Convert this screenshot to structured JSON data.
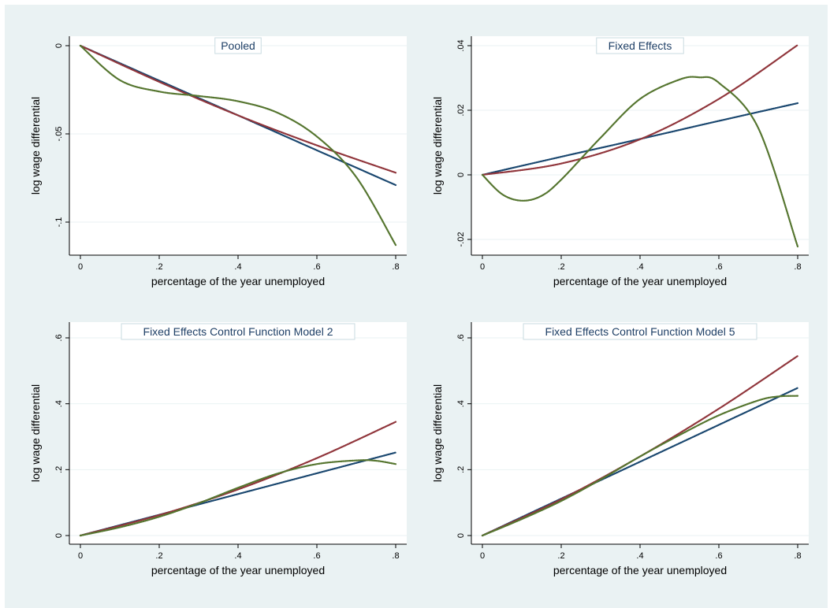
{
  "chart_data": [
    {
      "type": "line",
      "title": "Pooled",
      "xlabel": "percentage of the year unemployed",
      "ylabel": "log wage differential",
      "xlim": [
        0,
        0.8
      ],
      "ylim": [
        -0.12,
        0.0
      ],
      "xticks": [
        0,
        0.2,
        0.4,
        0.6,
        0.8
      ],
      "xtick_labels": [
        "0",
        ".2",
        ".4",
        ".6",
        ".8"
      ],
      "yticks": [
        0,
        -0.05,
        -0.1
      ],
      "ytick_labels": [
        "0",
        "-.05",
        "-.1"
      ],
      "series": [
        {
          "color": "#1a476f",
          "x": [
            0,
            0.2,
            0.4,
            0.6,
            0.8
          ],
          "y": [
            0,
            -0.0198,
            -0.0395,
            -0.0593,
            -0.079
          ]
        },
        {
          "color": "#90353b",
          "x": [
            0,
            0.2,
            0.4,
            0.6,
            0.8
          ],
          "y": [
            0,
            -0.0205,
            -0.0395,
            -0.0565,
            -0.072
          ]
        },
        {
          "color": "#55752f",
          "x": [
            0,
            0.1,
            0.2,
            0.3,
            0.4,
            0.5,
            0.6,
            0.7,
            0.8
          ],
          "y": [
            0,
            -0.0195,
            -0.026,
            -0.0285,
            -0.0315,
            -0.038,
            -0.0515,
            -0.0745,
            -0.113
          ]
        }
      ],
      "grid": true,
      "legend": "none"
    },
    {
      "type": "line",
      "title": "Fixed Effects",
      "xlabel": "percentage of the year unemployed",
      "ylabel": "log wage differential",
      "xlim": [
        0,
        0.8
      ],
      "ylim": [
        -0.022,
        0.04
      ],
      "xticks": [
        0,
        0.2,
        0.4,
        0.6,
        0.8
      ],
      "xtick_labels": [
        "0",
        ".2",
        ".4",
        ".6",
        ".8"
      ],
      "yticks": [
        0.04,
        0.02,
        0,
        -0.02
      ],
      "ytick_labels": [
        ".04",
        ".02",
        "0",
        "-.02"
      ],
      "series": [
        {
          "color": "#1a476f",
          "x": [
            0,
            0.2,
            0.4,
            0.6,
            0.8
          ],
          "y": [
            0,
            0.0056,
            0.0111,
            0.0167,
            0.0222
          ]
        },
        {
          "color": "#90353b",
          "x": [
            0,
            0.2,
            0.4,
            0.6,
            0.8
          ],
          "y": [
            0,
            0.0035,
            0.011,
            0.0235,
            0.0402
          ]
        },
        {
          "color": "#55752f",
          "x": [
            0,
            0.05,
            0.1,
            0.15,
            0.2,
            0.3,
            0.4,
            0.5,
            0.55,
            0.6,
            0.7,
            0.8
          ],
          "y": [
            0,
            -0.006,
            -0.008,
            -0.0065,
            -0.0015,
            0.0115,
            0.0235,
            0.0295,
            0.0302,
            0.0285,
            0.0145,
            -0.0222
          ]
        }
      ],
      "grid": true,
      "legend": "none"
    },
    {
      "type": "line",
      "title": "Fixed Effects Control Function Model 2",
      "xlabel": "percentage of the year unemployed",
      "ylabel": "log wage differential",
      "xlim": [
        0,
        0.8
      ],
      "ylim": [
        -0.005,
        0.6
      ],
      "xticks": [
        0,
        0.2,
        0.4,
        0.6,
        0.8
      ],
      "xtick_labels": [
        "0",
        ".2",
        ".4",
        ".6",
        ".8"
      ],
      "yticks": [
        0,
        0.2,
        0.4,
        0.6
      ],
      "ytick_labels": [
        "0",
        ".2",
        ".4",
        ".6"
      ],
      "series": [
        {
          "color": "#1a476f",
          "x": [
            0,
            0.2,
            0.4,
            0.6,
            0.8
          ],
          "y": [
            0,
            0.063,
            0.126,
            0.189,
            0.252
          ]
        },
        {
          "color": "#90353b",
          "x": [
            0,
            0.2,
            0.4,
            0.6,
            0.8
          ],
          "y": [
            0,
            0.062,
            0.14,
            0.235,
            0.345
          ]
        },
        {
          "color": "#55752f",
          "x": [
            0,
            0.1,
            0.2,
            0.3,
            0.4,
            0.5,
            0.6,
            0.7,
            0.75,
            0.8
          ],
          "y": [
            0,
            0.025,
            0.057,
            0.098,
            0.145,
            0.188,
            0.217,
            0.228,
            0.227,
            0.217
          ]
        }
      ],
      "grid": true,
      "legend": "none"
    },
    {
      "type": "line",
      "title": "Fixed Effects Control Function Model 5",
      "xlabel": "percentage of the year unemployed",
      "ylabel": "log wage differential",
      "xlim": [
        0,
        0.8
      ],
      "ylim": [
        -0.005,
        0.6
      ],
      "xticks": [
        0,
        0.2,
        0.4,
        0.6,
        0.8
      ],
      "xtick_labels": [
        "0",
        ".2",
        ".4",
        ".6",
        ".8"
      ],
      "yticks": [
        0,
        0.2,
        0.4,
        0.6
      ],
      "ytick_labels": [
        "0",
        ".2",
        ".4",
        ".6"
      ],
      "series": [
        {
          "color": "#1a476f",
          "x": [
            0,
            0.2,
            0.4,
            0.6,
            0.8
          ],
          "y": [
            0,
            0.112,
            0.224,
            0.336,
            0.448
          ]
        },
        {
          "color": "#90353b",
          "x": [
            0,
            0.2,
            0.4,
            0.6,
            0.8
          ],
          "y": [
            0,
            0.11,
            0.24,
            0.385,
            0.545
          ]
        },
        {
          "color": "#55752f",
          "x": [
            0,
            0.1,
            0.2,
            0.3,
            0.4,
            0.5,
            0.6,
            0.7,
            0.75,
            0.8
          ],
          "y": [
            0,
            0.05,
            0.105,
            0.17,
            0.24,
            0.305,
            0.365,
            0.41,
            0.422,
            0.424
          ]
        }
      ],
      "grid": true,
      "legend": "none"
    }
  ]
}
